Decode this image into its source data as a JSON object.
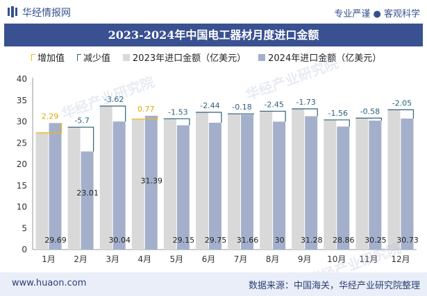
{
  "header": {
    "brand": "华经情报网",
    "slogan": "专业严谨 ● 客观科学"
  },
  "title": "2023-2024年中国电工器材月度进口金额",
  "legend": {
    "increase": "增加值",
    "decrease": "减少值",
    "y2023": "2023年进口金额（亿美元）",
    "y2024": "2024年进口金额（亿美元）"
  },
  "footer": {
    "url": "www.huaon.com",
    "source": "数据来源：中国海关，华经产业研究院整理"
  },
  "watermark": "华经产业研究院",
  "colors": {
    "bar2023": "#d9d9d9",
    "bar2024": "#a4b0cb",
    "increase": "#f2b600",
    "decrease": "#2d5f7b",
    "brand": "#35508f"
  },
  "chart_data": {
    "type": "bar",
    "categories": [
      "1月",
      "2月",
      "3月",
      "4月",
      "5月",
      "6月",
      "7月",
      "8月",
      "9月",
      "10月",
      "11月",
      "12月"
    ],
    "series": [
      {
        "name": "2023年进口金额（亿美元）",
        "values": [
          27.4,
          28.71,
          33.66,
          30.62,
          30.68,
          32.19,
          31.84,
          32.45,
          33.01,
          30.42,
          30.83,
          32.78
        ]
      },
      {
        "name": "2024年进口金额（亿美元）",
        "values": [
          29.69,
          23.01,
          30.04,
          31.39,
          29.15,
          29.75,
          31.66,
          30.0,
          31.28,
          28.86,
          30.25,
          30.73
        ]
      }
    ],
    "change_labels": [
      "2.29",
      "-5.7",
      "-3.62",
      "0.77",
      "-1.53",
      "-2.44",
      "-0.18",
      "-2.45",
      "-1.73",
      "-1.56",
      "-0.58",
      "-2.05"
    ],
    "value_labels_2024": [
      "29.69",
      "23.01",
      "30.04",
      "31.39",
      "29.15",
      "29.75",
      "31.66",
      "30",
      "31.28",
      "28.86",
      "30.25",
      "30.73"
    ],
    "y_ticks": [
      "0",
      "5",
      "10",
      "15",
      "20",
      "25",
      "30",
      "35",
      "40"
    ],
    "ylim": [
      0,
      40
    ],
    "grid": false,
    "legend_position": "top-left"
  }
}
